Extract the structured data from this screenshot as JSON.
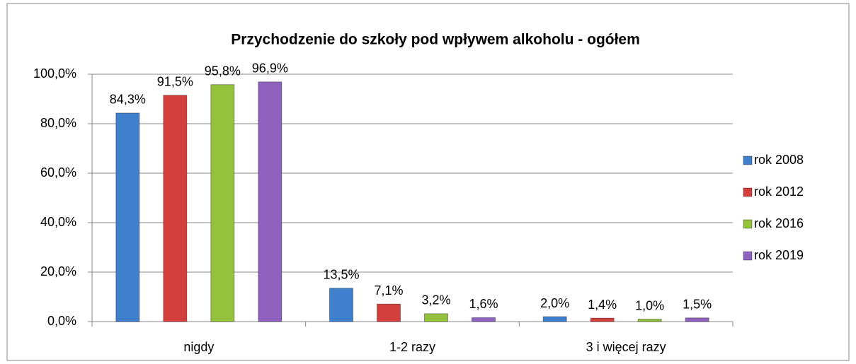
{
  "chart_data": {
    "type": "bar",
    "title": "Przychodzenie do szkoły pod wpływem alkoholu - ogółem",
    "categories": [
      "nigdy",
      "1-2 razy",
      "3 i więcej razy"
    ],
    "series": [
      {
        "name": "rok 2008",
        "color": "#3f7fcc",
        "values": [
          84.3,
          13.5,
          2.0
        ],
        "value_labels": [
          "84,3%",
          "13,5%",
          "2,0%"
        ]
      },
      {
        "name": "rok 2012",
        "color": "#d23f3c",
        "values": [
          91.5,
          7.1,
          1.4
        ],
        "value_labels": [
          "91,5%",
          "7,1%",
          "1,4%"
        ]
      },
      {
        "name": "rok 2016",
        "color": "#94c23c",
        "values": [
          95.8,
          3.2,
          1.0
        ],
        "value_labels": [
          "95,8%",
          "3,2%",
          "1,0%"
        ]
      },
      {
        "name": "rok 2019",
        "color": "#8e62be",
        "values": [
          96.9,
          1.6,
          1.5
        ],
        "value_labels": [
          "96,9%",
          "1,6%",
          "1,5%"
        ]
      }
    ],
    "ylim": [
      0,
      100
    ],
    "yticks": [
      {
        "value": 0,
        "label": "0,0%"
      },
      {
        "value": 20,
        "label": "20,0%"
      },
      {
        "value": 40,
        "label": "40,0%"
      },
      {
        "value": 60,
        "label": "60,0%"
      },
      {
        "value": 80,
        "label": "80,0%"
      },
      {
        "value": 100,
        "label": "100,0%"
      }
    ],
    "grid": true,
    "legend": "right"
  }
}
